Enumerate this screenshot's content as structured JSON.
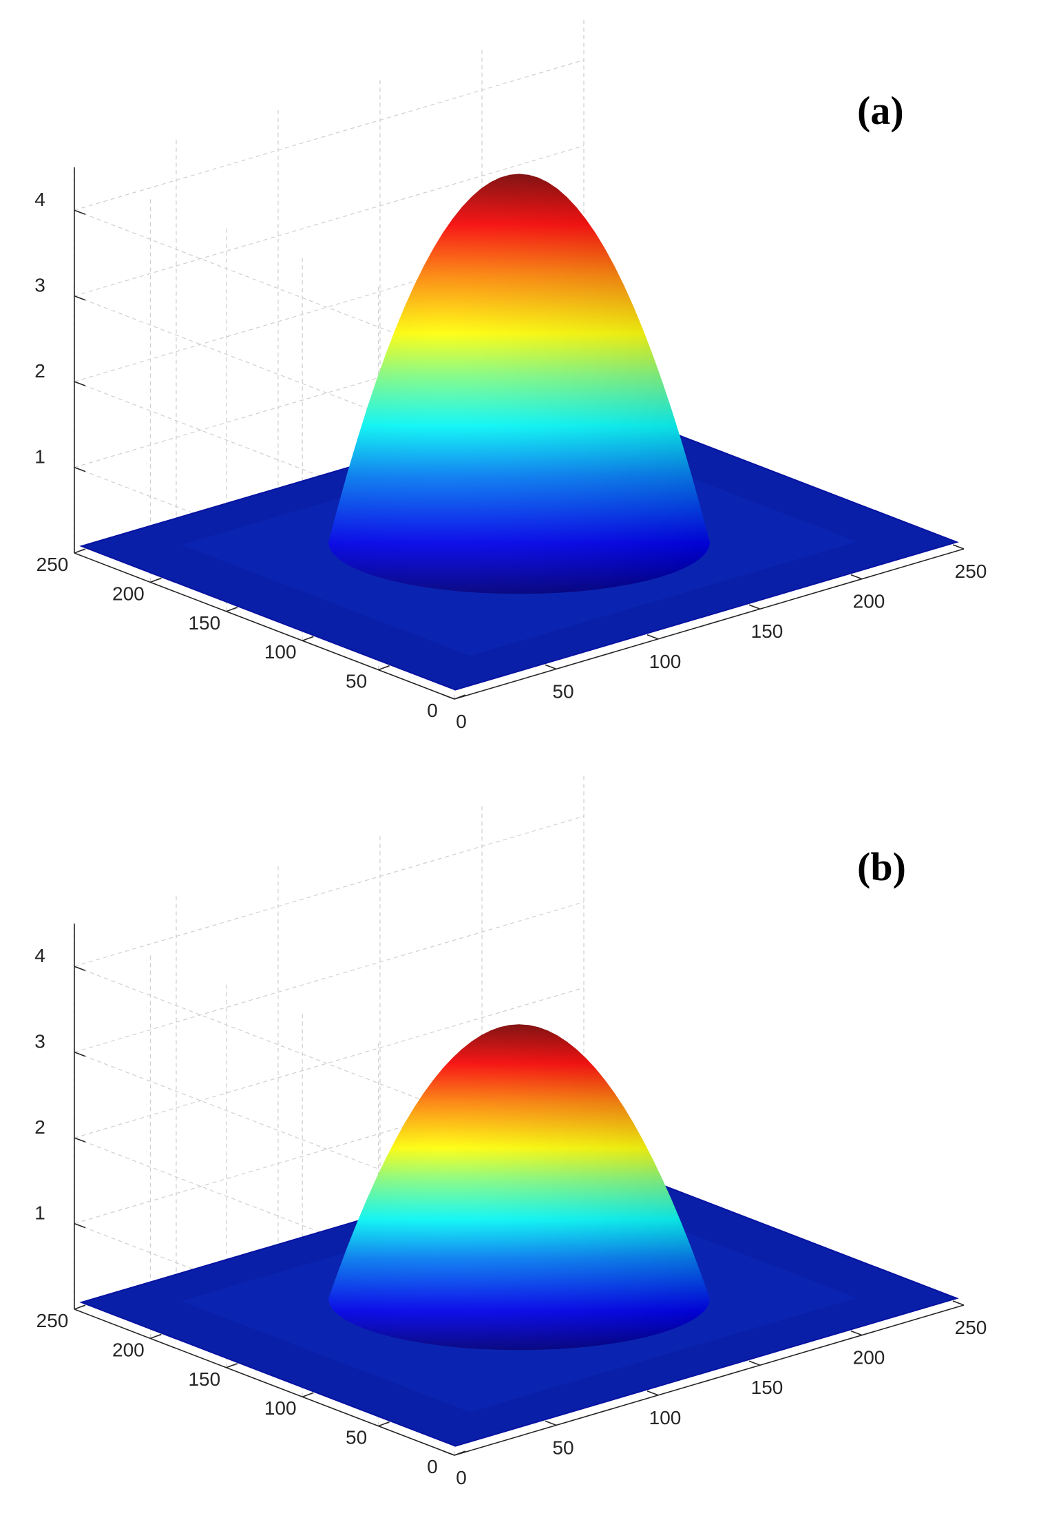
{
  "chart_data": [
    {
      "type": "surface",
      "label": "(a)",
      "z_ticks": [
        "1",
        "2",
        "3",
        "4"
      ],
      "x_ticks": [
        "0",
        "50",
        "100",
        "150",
        "200",
        "250"
      ],
      "y_ticks": [
        "0",
        "50",
        "100",
        "150",
        "200",
        "250"
      ],
      "xlim": [
        0,
        250
      ],
      "ylim": [
        0,
        250
      ],
      "zlim": [
        0,
        4.5
      ],
      "peak_z": 4.3,
      "grid": true,
      "colormap": "jet"
    },
    {
      "type": "surface",
      "label": "(b)",
      "z_ticks": [
        "1",
        "2",
        "3",
        "4"
      ],
      "x_ticks": [
        "0",
        "50",
        "100",
        "150",
        "200",
        "250"
      ],
      "y_ticks": [
        "0",
        "50",
        "100",
        "150",
        "200",
        "250"
      ],
      "xlim": [
        0,
        250
      ],
      "ylim": [
        0,
        250
      ],
      "zlim": [
        0,
        4.5
      ],
      "peak_z": 3.2,
      "grid": true,
      "colormap": "jet"
    }
  ]
}
